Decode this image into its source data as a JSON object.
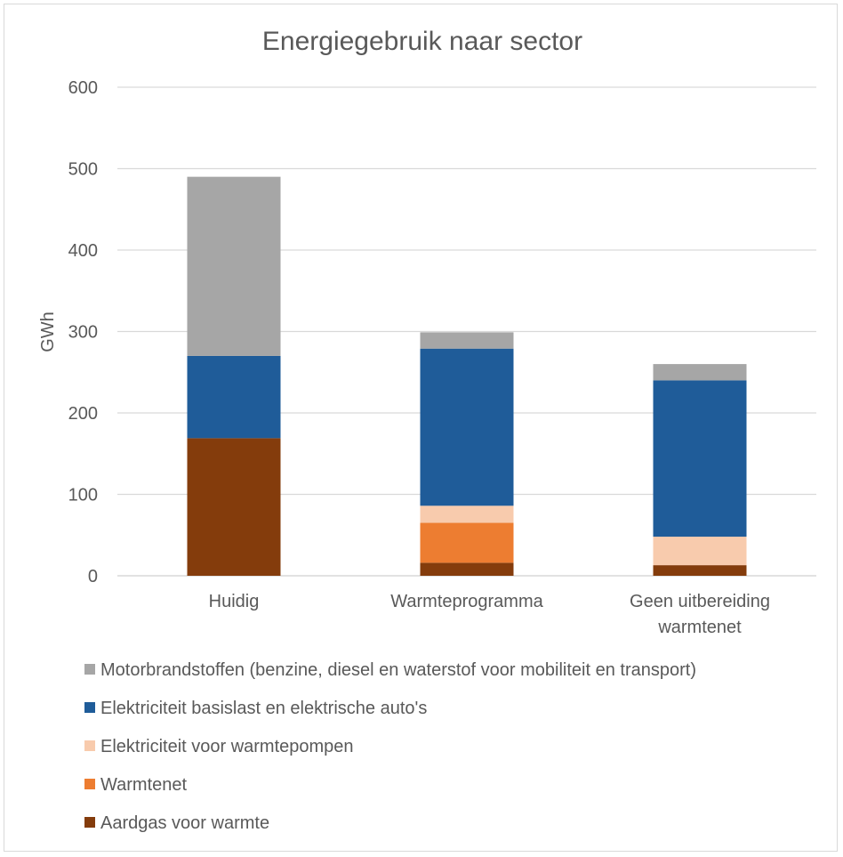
{
  "chart_data": {
    "type": "bar",
    "stacked": true,
    "title": "Energiegebruik naar sector",
    "xlabel": "",
    "ylabel": "GWh",
    "ylim": [
      0,
      600
    ],
    "yticks": [
      0,
      100,
      200,
      300,
      400,
      500,
      600
    ],
    "grid": true,
    "legend_position": "bottom",
    "categories": [
      [
        "Huidig"
      ],
      [
        "Warmteprogramma"
      ],
      [
        "Geen uitbereiding",
        "warmtenet"
      ]
    ],
    "series": [
      {
        "name": "Aardgas voor warmte",
        "color": "#843C0C",
        "values": [
          169,
          16,
          13
        ]
      },
      {
        "name": "Warmtenet",
        "color": "#ED7D31",
        "values": [
          0,
          49,
          0
        ]
      },
      {
        "name": "Elektriciteit voor warmtepompen",
        "color": "#F8CBAD",
        "values": [
          0,
          21,
          35
        ]
      },
      {
        "name": "Elektriciteit basislast en elektrische auto's",
        "color": "#1F5C99",
        "values": [
          101,
          193,
          192
        ]
      },
      {
        "name": "Motorbrandstoffen (benzine, diesel en waterstof  voor mobiliteit en transport)",
        "color": "#A6A6A6",
        "values": [
          220,
          20,
          20
        ]
      }
    ],
    "legend_order": [
      "Motorbrandstoffen (benzine, diesel en waterstof  voor mobiliteit en transport)",
      "Elektriciteit basislast en elektrische auto's",
      "Elektriciteit voor warmtepompen",
      "Warmtenet",
      "Aardgas voor warmte"
    ]
  }
}
